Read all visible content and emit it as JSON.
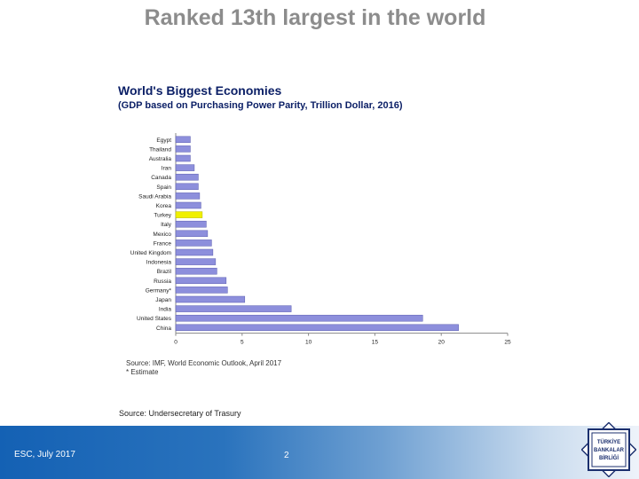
{
  "slide": {
    "title": "Ranked 13th largest in the world",
    "source": "Source: Undersecretary of Trasury",
    "footer_left": "ESC, July 2017",
    "page_number": "2"
  },
  "logo": {
    "lines": [
      "TÜRKİYE",
      "BANKALAR",
      "BİRLİĞİ"
    ],
    "color": "#1b2f6e"
  },
  "colors": {
    "bar": "#8d8fdc",
    "bar_highlight": "#f0f000",
    "title": "#0b1f66"
  },
  "chart_data": {
    "type": "bar",
    "orientation": "horizontal",
    "title": "World's Biggest Economies",
    "subtitle": "(GDP based on Purchasing Power Parity, Trillion Dollar, 2016)",
    "categories": [
      "Egypt",
      "Thailand",
      "Australia",
      "Iran",
      "Canada",
      "Spain",
      "Saudi Arabia",
      "Korea",
      "Turkey",
      "Italy",
      "Mexico",
      "France",
      "United Kingdom",
      "Indonesia",
      "Brazil",
      "Russia",
      "Germany*",
      "Japan",
      "India",
      "United States",
      "China"
    ],
    "values": [
      1.1,
      1.1,
      1.1,
      1.4,
      1.7,
      1.7,
      1.8,
      1.9,
      2.0,
      2.3,
      2.4,
      2.7,
      2.8,
      3.0,
      3.1,
      3.8,
      3.9,
      5.2,
      8.7,
      18.6,
      21.3
    ],
    "highlight": "Turkey",
    "xlim": [
      0,
      25
    ],
    "xticks": [
      "0",
      "5",
      "10",
      "15",
      "20",
      "25"
    ],
    "grid": false,
    "source": "Source: IMF, World Economic Outlook, April 2017",
    "note": "* Estimate"
  }
}
